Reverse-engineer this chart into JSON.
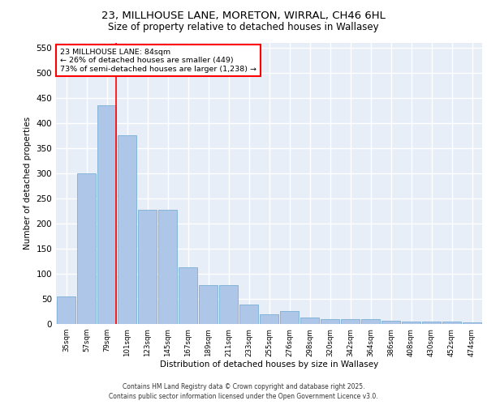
{
  "title_line1": "23, MILLHOUSE LANE, MORETON, WIRRAL, CH46 6HL",
  "title_line2": "Size of property relative to detached houses in Wallasey",
  "xlabel": "Distribution of detached houses by size in Wallasey",
  "ylabel": "Number of detached properties",
  "categories": [
    "35sqm",
    "57sqm",
    "79sqm",
    "101sqm",
    "123sqm",
    "145sqm",
    "167sqm",
    "189sqm",
    "211sqm",
    "233sqm",
    "255sqm",
    "276sqm",
    "298sqm",
    "320sqm",
    "342sqm",
    "364sqm",
    "386sqm",
    "408sqm",
    "430sqm",
    "452sqm",
    "474sqm"
  ],
  "values": [
    55,
    300,
    435,
    375,
    227,
    227,
    113,
    78,
    78,
    38,
    20,
    25,
    13,
    10,
    10,
    10,
    6,
    5,
    5,
    5,
    3
  ],
  "bar_color": "#aec6e8",
  "bar_edge_color": "#7bafd4",
  "red_line_index": 2,
  "annotation_text_line1": "23 MILLHOUSE LANE: 84sqm",
  "annotation_text_line2": "← 26% of detached houses are smaller (449)",
  "annotation_text_line3": "73% of semi-detached houses are larger (1,238) →",
  "ylim": [
    0,
    560
  ],
  "yticks": [
    0,
    50,
    100,
    150,
    200,
    250,
    300,
    350,
    400,
    450,
    500,
    550
  ],
  "background_color": "#e8eef8",
  "grid_color": "#ffffff",
  "footer_line1": "Contains HM Land Registry data © Crown copyright and database right 2025.",
  "footer_line2": "Contains public sector information licensed under the Open Government Licence v3.0."
}
